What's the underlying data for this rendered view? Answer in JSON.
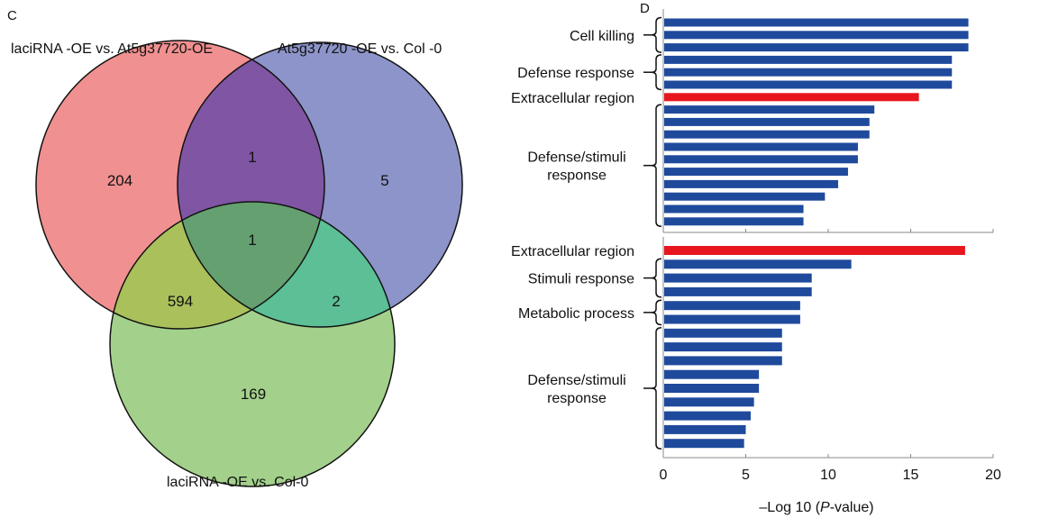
{
  "chart_data": [
    {
      "type": "venn",
      "panel_label": "C",
      "sets": [
        {
          "name": "laciRNA -OE vs. At5g37720-OE",
          "color": "#f09090"
        },
        {
          "name": "At5g37720 -OE vs. Col  -0",
          "color": "#8c94c9"
        },
        {
          "name": "laciRNA -OE vs. Col-0",
          "color": "#a3d18b"
        }
      ],
      "regions": {
        "only_A": "204",
        "only_B": "5",
        "only_C": "169",
        "A_B": "1",
        "A_C": "594",
        "B_C": "2",
        "A_B_C": "1"
      },
      "region_colors": {
        "A_B": "#8055a3",
        "A_C": "#a9c05b",
        "B_C": "#5cbf95",
        "A_B_C": "#65a070"
      }
    },
    {
      "type": "bar",
      "orientation": "horizontal",
      "panel_label": "D",
      "xlabel": "–Log 10 (P-value)",
      "xlabel_parts": [
        "–Log 10 (",
        "P",
        "-value)"
      ],
      "xlim": [
        0,
        20
      ],
      "xticks": [
        "0",
        "5",
        "10",
        "15",
        "20"
      ],
      "colors": {
        "default": "#1f4a9c",
        "highlight": "#e8161e"
      },
      "panels": [
        {
          "groups": [
            {
              "label": [
                "Cell killing"
              ],
              "values": [
                18.5,
                18.5,
                18.5
              ],
              "highlight": false
            },
            {
              "label": [
                "Defense response"
              ],
              "values": [
                17.5,
                17.5,
                17.5
              ],
              "highlight": false
            },
            {
              "label": [
                "Extracellular region"
              ],
              "values": [
                15.5
              ],
              "highlight": true
            },
            {
              "label": [
                "Defense/stimuli",
                "response"
              ],
              "values": [
                12.8,
                12.5,
                12.5,
                11.8,
                11.8,
                11.2,
                10.6,
                9.8,
                8.5,
                8.5
              ],
              "highlight": false
            }
          ]
        },
        {
          "groups": [
            {
              "label": [
                "Extracellular region"
              ],
              "values": [
                18.3
              ],
              "highlight": true
            },
            {
              "label": [
                "Stimuli response"
              ],
              "values": [
                11.4,
                9.0,
                9.0
              ],
              "highlight": false
            },
            {
              "label": [
                "Metabolic  process"
              ],
              "values": [
                8.3,
                8.3
              ],
              "highlight": false
            },
            {
              "label": [
                "Defense/stimuli",
                "response"
              ],
              "values": [
                7.2,
                7.2,
                7.2,
                5.8,
                5.8,
                5.5,
                5.3,
                5.0,
                4.9
              ],
              "highlight": false
            }
          ]
        }
      ]
    }
  ]
}
